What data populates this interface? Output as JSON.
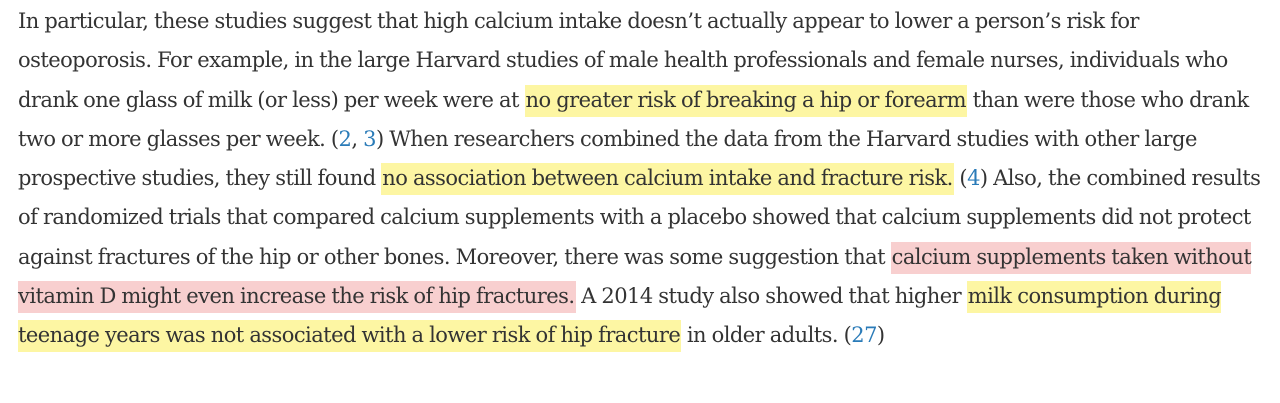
{
  "paragraph": {
    "s1": "In particular, these studies suggest that high calcium intake doesn’t actually appear to lower a person’s risk for osteoporosis. For example, in the large Harvard studies of male health professionals and female nurses, individuals who drank one glass of milk (or less) per week were at ",
    "h1": "no greater risk of breaking a hip or forearm",
    "s2": " than were those who drank two or more glasses per week. (",
    "c1": "2",
    "s3": ", ",
    "c2": "3",
    "s4": ") When researchers combined the data from the Harvard studies with other large prospective studies, they still found ",
    "h2": "no association between calcium intake and fracture risk.",
    "s5": " (",
    "c3": "4",
    "s6": ") Also, the combined results of randomized trials that compared calcium supplements with a placebo showed that calcium supplements did not protect against fractures of the hip or other bones. Moreover, there was some suggestion that ",
    "h3": "calcium supplements taken without vitamin D might even increase the risk of hip fractures.",
    "s7": " A 2014 study also showed that higher ",
    "h4": "milk consumption during teenage years was not associated with a lower risk of hip fracture",
    "s8": " in older adults. (",
    "c4": "27",
    "s9": ")"
  },
  "colors": {
    "text": "#333333",
    "highlight_yellow": "#fdf6a3",
    "highlight_red": "#f8cfcf",
    "link": "#2a7bb8"
  }
}
